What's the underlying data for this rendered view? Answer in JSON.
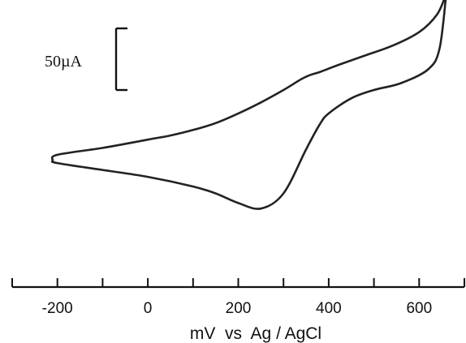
{
  "chart_data": {
    "type": "line",
    "title": "",
    "xlabel": "mV  vs  Ag / AgCl",
    "ylabel": "",
    "xlim": [
      -300,
      700
    ],
    "grid": false,
    "legend": "none",
    "x_ticks": [
      -200,
      0,
      200,
      400,
      600
    ],
    "x_minor_ticks": [
      -300,
      -100,
      100,
      300,
      500,
      700
    ],
    "scale_bar": {
      "label": "50µA",
      "value_uA": 50
    },
    "series": [
      {
        "name": "",
        "color": "#222222",
        "x": [
          660,
          640,
          600,
          540,
          480,
          420,
          380,
          360,
          340,
          300,
          250,
          200,
          150,
          100,
          50,
          0,
          -100,
          -200,
          -210,
          -200,
          -100,
          0,
          100,
          150,
          200,
          250,
          300,
          350,
          380,
          400,
          450,
          500,
          560,
          620,
          645,
          660
        ],
        "y": [
          90,
          75,
          62,
          52,
          45,
          38,
          33,
          31,
          28,
          20,
          11,
          3,
          -4,
          -9,
          -13,
          -16,
          -22,
          -27,
          -31,
          -33,
          -38,
          -43,
          -50,
          -55,
          -62,
          -66,
          -55,
          -23,
          -5,
          3,
          14,
          20,
          25,
          35,
          50,
          90
        ]
      }
    ]
  }
}
